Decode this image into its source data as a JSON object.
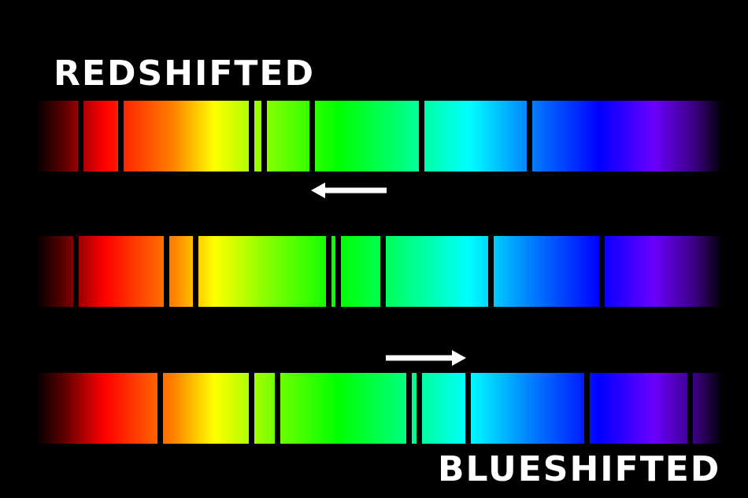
{
  "labels": {
    "top": "REDSHIFTED",
    "bottom": "BLUESHIFTED"
  },
  "spectra": [
    {
      "id": "redshifted",
      "absorption_lines": [
        0.066,
        0.124,
        0.315,
        0.333,
        0.403,
        0.562,
        0.719
      ]
    },
    {
      "id": "rest",
      "absorption_lines": [
        0.059,
        0.191,
        0.233,
        0.427,
        0.441,
        0.506,
        0.663,
        0.824
      ]
    },
    {
      "id": "blueshifted",
      "absorption_lines": [
        0.182,
        0.314,
        0.352,
        0.544,
        0.558,
        0.629,
        0.802,
        0.952
      ]
    }
  ],
  "arrows": [
    {
      "id": "redshift-arrow",
      "direction": "left",
      "color": "#ffffff"
    },
    {
      "id": "blueshift-arrow",
      "direction": "right",
      "color": "#ffffff"
    }
  ]
}
